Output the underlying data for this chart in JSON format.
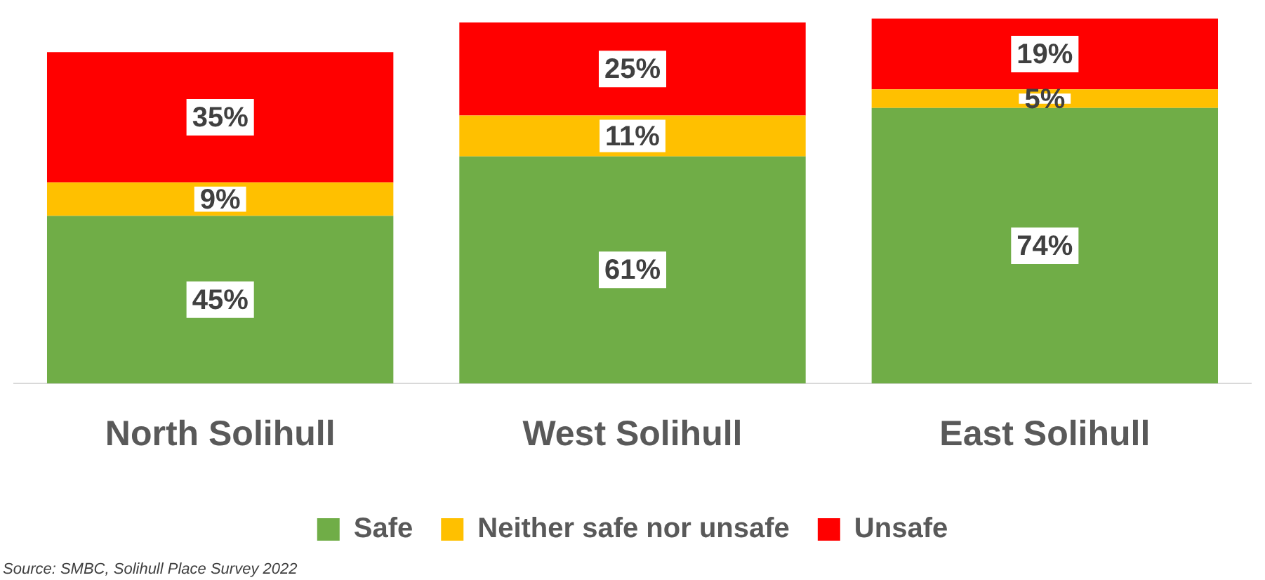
{
  "chart_data": {
    "type": "bar",
    "stacked": true,
    "categories": [
      "North Solihull",
      "West Solihull",
      "East Solihull"
    ],
    "series": [
      {
        "name": "Safe",
        "color": "#70ad47",
        "values": [
          45,
          61,
          74
        ],
        "value_labels": [
          "45%",
          "61%",
          "74%"
        ]
      },
      {
        "name": "Neither safe nor unsafe",
        "color": "#ffc000",
        "values": [
          9,
          11,
          5
        ],
        "value_labels": [
          "9%",
          "11%",
          "5%"
        ]
      },
      {
        "name": "Unsafe",
        "color": "#ff0000",
        "values": [
          35,
          25,
          19
        ],
        "value_labels": [
          "35%",
          "25%",
          "19%"
        ]
      }
    ],
    "legend": "bottom",
    "grid": false,
    "annotations": [
      "Source: SMBC, Solihull Place Survey 2022"
    ]
  }
}
